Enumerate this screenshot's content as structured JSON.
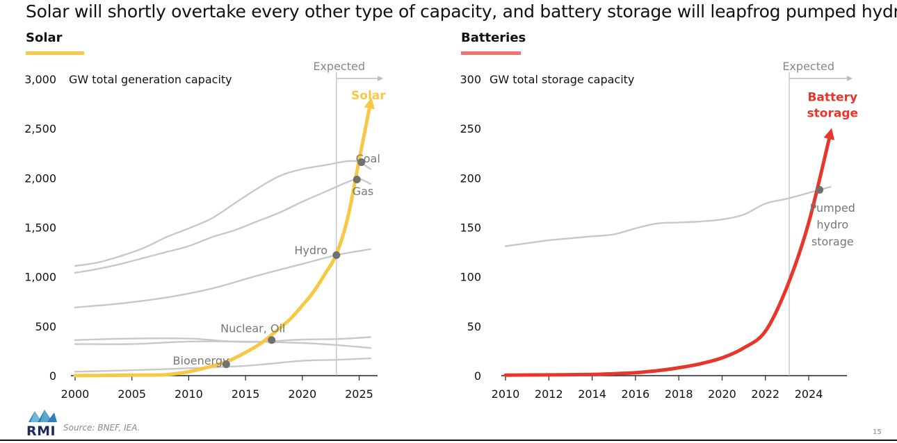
{
  "title": "Solar will shortly overtake every other type of capacity, and battery storage will leapfrog pumped hydro",
  "colors": {
    "solar": "#f7c843",
    "battery": "#e8362b",
    "other": "#c8c8c8",
    "marker": "#707070",
    "axis": "#222222",
    "expected_line": "#bdbdbd",
    "label_gray": "#777777"
  },
  "footer": {
    "source": "Source: BNEF, IEA.",
    "page_number": "15",
    "logo_text": "RMI"
  },
  "chart_data": [
    {
      "type": "line",
      "panel_title": "Solar",
      "ylabel": "GW total generation capacity",
      "xlabel": "",
      "xlim": [
        2000,
        2026.5
      ],
      "ylim": [
        0,
        3000
      ],
      "x_ticks": [
        2000,
        2005,
        2010,
        2015,
        2020,
        2025
      ],
      "y_ticks": [
        0,
        500,
        1000,
        1500,
        2000,
        2500,
        3000
      ],
      "y_tick_labels": [
        "0",
        "500",
        "1,000",
        "1,500",
        "2,000",
        "2,500",
        "3,000"
      ],
      "expected_from": 2023,
      "expected_label": "Expected",
      "highlight_series": "Solar",
      "series": [
        {
          "name": "Solar",
          "x": [
            2000,
            2002,
            2004,
            2006,
            2008,
            2010,
            2012,
            2013,
            2014,
            2016,
            2017,
            2018,
            2019,
            2020,
            2021,
            2022,
            2023,
            2024,
            2025,
            2026
          ],
          "values": [
            1,
            2,
            4,
            6,
            10,
            40,
            95,
            130,
            175,
            300,
            385,
            480,
            580,
            710,
            850,
            1030,
            1230,
            1600,
            2180,
            2760
          ]
        },
        {
          "name": "Coal",
          "x": [
            2000,
            2002,
            2004,
            2006,
            2008,
            2010,
            2012,
            2014,
            2016,
            2018,
            2020,
            2022,
            2024,
            2025,
            2026
          ],
          "values": [
            1110,
            1145,
            1210,
            1290,
            1400,
            1490,
            1590,
            1740,
            1890,
            2020,
            2090,
            2130,
            2170,
            2160,
            2090
          ]
        },
        {
          "name": "Gas",
          "x": [
            2000,
            2002,
            2004,
            2006,
            2008,
            2010,
            2012,
            2014,
            2016,
            2018,
            2020,
            2022,
            2024,
            2025,
            2026
          ],
          "values": [
            1040,
            1080,
            1130,
            1190,
            1250,
            1310,
            1400,
            1470,
            1560,
            1650,
            1760,
            1860,
            1960,
            1990,
            1940
          ]
        },
        {
          "name": "Hydro",
          "x": [
            2000,
            2004,
            2008,
            2012,
            2016,
            2020,
            2023,
            2026
          ],
          "values": [
            690,
            730,
            790,
            880,
            1010,
            1130,
            1220,
            1280
          ]
        },
        {
          "name": "Nuclear",
          "x": [
            2000,
            2005,
            2010,
            2015,
            2020,
            2023,
            2026
          ],
          "values": [
            360,
            375,
            375,
            340,
            365,
            370,
            390
          ]
        },
        {
          "name": "Oil",
          "x": [
            2000,
            2005,
            2010,
            2015,
            2020,
            2023,
            2026
          ],
          "values": [
            320,
            320,
            345,
            345,
            330,
            310,
            280
          ]
        },
        {
          "name": "Bioenergy",
          "x": [
            2000,
            2005,
            2010,
            2015,
            2020,
            2023,
            2026
          ],
          "values": [
            40,
            55,
            75,
            100,
            150,
            160,
            175
          ]
        }
      ],
      "labels": [
        {
          "text": "Solar",
          "x": 2024.3,
          "y": 2840,
          "series": "Solar"
        },
        {
          "text": "Coal",
          "x": 2024.7,
          "y": 2200
        },
        {
          "text": "Gas",
          "x": 2024.4,
          "y": 1870
        },
        {
          "text": "Hydro",
          "x": 2019.3,
          "y": 1270
        },
        {
          "text": "Nuclear, Oil",
          "x": 2012.8,
          "y": 480
        },
        {
          "text": "Bioenergy",
          "x": 2008.6,
          "y": 155
        }
      ],
      "markers": [
        {
          "x": 2023,
          "y": 1220
        },
        {
          "x": 2024.8,
          "y": 1985
        },
        {
          "x": 2025.2,
          "y": 2160
        },
        {
          "x": 2017.3,
          "y": 360
        },
        {
          "x": 2013.3,
          "y": 115
        }
      ]
    },
    {
      "type": "line",
      "panel_title": "Batteries",
      "ylabel": "GW total storage capacity",
      "xlabel": "",
      "xlim": [
        2010,
        2025.7
      ],
      "ylim": [
        0,
        300
      ],
      "x_ticks": [
        2010,
        2012,
        2014,
        2016,
        2018,
        2020,
        2022,
        2024
      ],
      "y_ticks": [
        0,
        50,
        100,
        150,
        200,
        250,
        300
      ],
      "y_tick_labels": [
        "0",
        "50",
        "100",
        "150",
        "200",
        "250",
        "300"
      ],
      "expected_from": 2023.1,
      "expected_label": "Expected",
      "highlight_series": "Battery storage",
      "series": [
        {
          "name": "Battery storage",
          "x": [
            2010,
            2012,
            2014,
            2015,
            2016,
            2017,
            2018,
            2019,
            2020,
            2021,
            2022,
            2023,
            2024,
            2025
          ],
          "values": [
            0.5,
            0.8,
            1.2,
            2,
            3,
            5,
            8,
            12,
            18,
            28,
            45,
            90,
            155,
            245
          ]
        },
        {
          "name": "Pumped hydro storage",
          "x": [
            2010,
            2011,
            2012,
            2013,
            2014,
            2015,
            2016,
            2017,
            2018,
            2019,
            2020,
            2021,
            2022,
            2023,
            2024,
            2025
          ],
          "values": [
            131,
            134,
            137,
            139,
            141,
            143,
            149,
            154,
            155,
            156,
            158,
            163,
            174,
            179,
            185,
            191
          ]
        }
      ],
      "labels": [
        {
          "text": "Battery",
          "x": 2025.1,
          "y": 282,
          "series": "Battery storage"
        },
        {
          "text": "storage",
          "x": 2025.1,
          "y": 266,
          "series": "Battery storage"
        },
        {
          "text": "Pumped",
          "x": 2025.1,
          "y": 170
        },
        {
          "text": "hydro",
          "x": 2025.1,
          "y": 153
        },
        {
          "text": "storage",
          "x": 2025.1,
          "y": 136
        }
      ],
      "markers": [
        {
          "x": 2024.5,
          "y": 188
        }
      ]
    }
  ]
}
